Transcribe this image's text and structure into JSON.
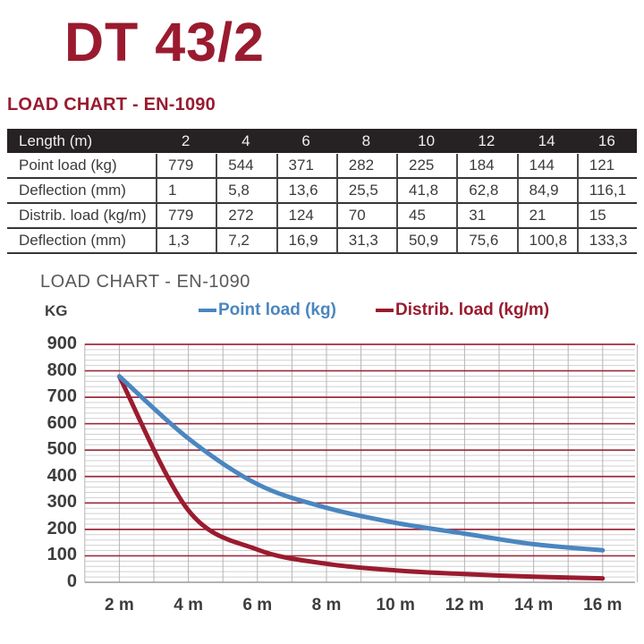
{
  "page": {
    "title": "DT 43/2",
    "section_heading": "LOAD CHART - EN-1090"
  },
  "table": {
    "header": {
      "label": "Length (m)",
      "columns": [
        "2",
        "4",
        "6",
        "8",
        "10",
        "12",
        "14",
        "16"
      ]
    },
    "rows": [
      {
        "label": "Point load (kg)",
        "values": [
          "779",
          "544",
          "371",
          "282",
          "225",
          "184",
          "144",
          "121"
        ]
      },
      {
        "label": "Deflection (mm)",
        "values": [
          "1",
          "5,8",
          "13,6",
          "25,5",
          "41,8",
          "62,8",
          "84,9",
          "116,1"
        ]
      },
      {
        "label": "Distrib. load (kg/m)",
        "values": [
          "779",
          "272",
          "124",
          "70",
          "45",
          "31",
          "21",
          "15"
        ]
      },
      {
        "label": "Deflection (mm)",
        "values": [
          "1,3",
          "7,2",
          "16,9",
          "31,3",
          "50,9",
          "75,6",
          "100,8",
          "133,3"
        ]
      }
    ]
  },
  "chart": {
    "title": "LOAD CHART - EN-1090",
    "y_axis_label": "KG",
    "legend": [
      {
        "label": "Point load (kg)",
        "color": "#4a86c0"
      },
      {
        "label": "Distrib. load (kg/m)",
        "color": "#9a1b2f"
      }
    ]
  },
  "chart_data": {
    "type": "line",
    "title": "LOAD CHART - EN-1090",
    "x": [
      2,
      4,
      6,
      8,
      10,
      12,
      14,
      16
    ],
    "x_tick_labels": [
      "2 m",
      "4 m",
      "6 m",
      "8 m",
      "10 m",
      "12 m",
      "14 m",
      "16 m"
    ],
    "y_ticks": [
      0,
      100,
      200,
      300,
      400,
      500,
      600,
      700,
      800,
      900
    ],
    "series": [
      {
        "name": "Point load (kg)",
        "color": "#4a86c0",
        "values": [
          779,
          544,
          371,
          282,
          225,
          184,
          144,
          121
        ]
      },
      {
        "name": "Distrib. load (kg/m)",
        "color": "#9a1b2f",
        "values": [
          779,
          272,
          124,
          70,
          45,
          31,
          21,
          15
        ]
      }
    ],
    "xlim": [
      1,
      17
    ],
    "ylim": [
      0,
      900
    ],
    "ylabel": "KG",
    "xlabel": "",
    "grid": {
      "major_step": 100,
      "minor_step": 20,
      "x_step": 1,
      "major_color": "#9e2b3c",
      "minor_color": "#d0d0d0",
      "vertical_color": "#b5b5b5",
      "axis_color": "#9a9a9a",
      "grid_on": true
    },
    "legend_position": "top"
  },
  "colors": {
    "brand_red": "#9a1b2f",
    "table_header_bg": "#262223",
    "table_text": "#3b3b3b",
    "tick_text": "#3d3d3d",
    "chart_title_text": "#595959"
  }
}
